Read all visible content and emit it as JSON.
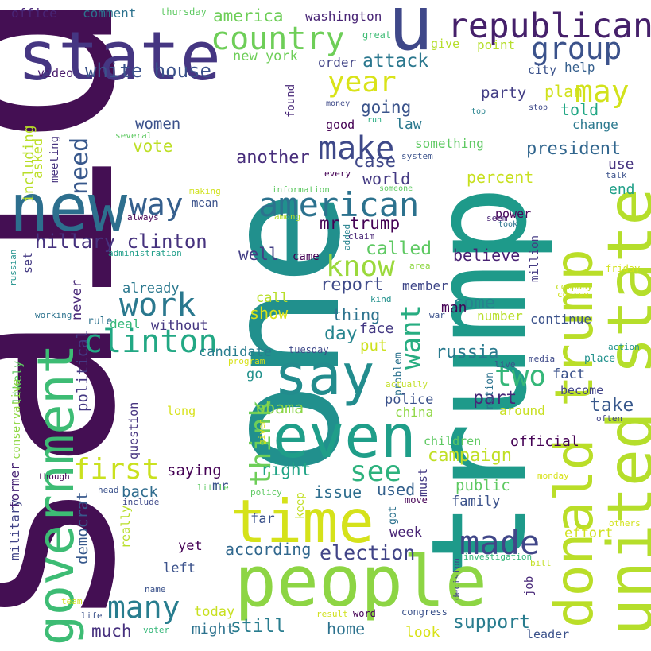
{
  "words": [
    {
      "text": "said",
      "color": "#440f53"
    },
    {
      "text": "one",
      "color": "#21908d"
    },
    {
      "text": "trump",
      "color": "#1e9a8a"
    },
    {
      "text": "state",
      "color": "#453682"
    },
    {
      "text": "u",
      "color": "#3f4889"
    },
    {
      "text": "republican",
      "color": "#45206a"
    },
    {
      "text": "new",
      "color": "#2d6f8e"
    },
    {
      "text": "people",
      "color": "#8dd544"
    },
    {
      "text": "government",
      "color": "#3dbc74"
    },
    {
      "text": "time",
      "color": "#d5e21a"
    },
    {
      "text": "donald trump",
      "color": "#bade28"
    },
    {
      "text": "united state",
      "color": "#b5de2b"
    },
    {
      "text": "even",
      "color": "#1f9e89"
    },
    {
      "text": "say",
      "color": "#228c8d"
    },
    {
      "text": "country",
      "color": "#6ece58"
    },
    {
      "text": "group",
      "color": "#3b528b"
    },
    {
      "text": "may",
      "color": "#d2e21b"
    },
    {
      "text": "year",
      "color": "#d9e319"
    },
    {
      "text": "make",
      "color": "#3e4989"
    },
    {
      "text": "american",
      "color": "#2c728e"
    },
    {
      "text": "know",
      "color": "#9bd93c"
    },
    {
      "text": "way",
      "color": "#355f8d"
    },
    {
      "text": "need",
      "color": "#38588c"
    },
    {
      "text": "work",
      "color": "#2a788e"
    },
    {
      "text": "clinton",
      "color": "#22a884"
    },
    {
      "text": "first",
      "color": "#cae11f"
    },
    {
      "text": "hillary clinton",
      "color": "#46327e"
    },
    {
      "text": "think",
      "color": "#6ece58"
    },
    {
      "text": "see",
      "color": "#2db27d"
    },
    {
      "text": "two",
      "color": "#35b779"
    },
    {
      "text": "made",
      "color": "#404688"
    },
    {
      "text": "many",
      "color": "#287d8e"
    },
    {
      "text": "election",
      "color": "#414487"
    },
    {
      "text": "want",
      "color": "#27ad81"
    },
    {
      "text": "america",
      "color": "#6ece58"
    },
    {
      "text": "washington",
      "color": "#482475"
    },
    {
      "text": "white house",
      "color": "#3b528b"
    },
    {
      "text": "new york",
      "color": "#6ece58"
    },
    {
      "text": "attack",
      "color": "#2a778e"
    },
    {
      "text": "going",
      "color": "#3a538b"
    },
    {
      "text": "party",
      "color": "#433e85"
    },
    {
      "text": "plan",
      "color": "#d0e11c"
    },
    {
      "text": "told",
      "color": "#22a785"
    },
    {
      "text": "president",
      "color": "#31668e"
    },
    {
      "text": "women",
      "color": "#3b518b"
    },
    {
      "text": "vote",
      "color": "#bddf26"
    },
    {
      "text": "another",
      "color": "#472d7b"
    },
    {
      "text": "case",
      "color": "#3f4889"
    },
    {
      "text": "world",
      "color": "#443a83"
    },
    {
      "text": "mr trump",
      "color": "#440154"
    },
    {
      "text": "called",
      "color": "#5ec962"
    },
    {
      "text": "well",
      "color": "#433e85"
    },
    {
      "text": "report",
      "color": "#3e4a89"
    },
    {
      "text": "believe",
      "color": "#482173"
    },
    {
      "text": "come",
      "color": "#26828e"
    },
    {
      "text": "russia",
      "color": "#297a8e"
    },
    {
      "text": "day",
      "color": "#25848e"
    },
    {
      "text": "political",
      "color": "#443983"
    },
    {
      "text": "democrat",
      "color": "#38598c"
    },
    {
      "text": "campaign",
      "color": "#c0df25"
    },
    {
      "text": "obama",
      "color": "#8bd646"
    },
    {
      "text": "right",
      "color": "#20a486"
    },
    {
      "text": "part",
      "color": "#482878"
    },
    {
      "text": "take",
      "color": "#38588c"
    },
    {
      "text": "support",
      "color": "#287c8e"
    },
    {
      "text": "still",
      "color": "#287c8e"
    },
    {
      "text": "much",
      "color": "#46307e"
    },
    {
      "text": "according",
      "color": "#31688e"
    },
    {
      "text": "issue",
      "color": "#2e6e8e"
    },
    {
      "text": "used",
      "color": "#34618d"
    },
    {
      "text": "back",
      "color": "#2f6c8e"
    },
    {
      "text": "saying",
      "color": "#440154"
    },
    {
      "text": "public",
      "color": "#5ec962"
    },
    {
      "text": "family",
      "color": "#3b528b"
    },
    {
      "text": "office",
      "color": "#482576"
    },
    {
      "text": "comment",
      "color": "#2c728e"
    },
    {
      "text": "thursday",
      "color": "#5ec962"
    },
    {
      "text": "great",
      "color": "#3dbc74"
    },
    {
      "text": "give",
      "color": "#b5de2b"
    },
    {
      "text": "point",
      "color": "#b5de2b"
    },
    {
      "text": "video",
      "color": "#481a6c"
    },
    {
      "text": "order",
      "color": "#414487"
    },
    {
      "text": "city",
      "color": "#3b528b"
    },
    {
      "text": "help",
      "color": "#355f8d"
    },
    {
      "text": "including",
      "color": "#b8de29"
    },
    {
      "text": "asked",
      "color": "#bddf26"
    },
    {
      "text": "meeting",
      "color": "#46337f"
    },
    {
      "text": "found",
      "color": "#482878"
    },
    {
      "text": "money",
      "color": "#3e4a89"
    },
    {
      "text": "run",
      "color": "#27ad81"
    },
    {
      "text": "top",
      "color": "#26828e"
    },
    {
      "text": "stop",
      "color": "#3e4989"
    },
    {
      "text": "law",
      "color": "#2a788e"
    },
    {
      "text": "good",
      "color": "#440154"
    },
    {
      "text": "change",
      "color": "#2a788e"
    },
    {
      "text": "something",
      "color": "#5ec962"
    },
    {
      "text": "system",
      "color": "#3b528b"
    },
    {
      "text": "several",
      "color": "#5ec962"
    },
    {
      "text": "use",
      "color": "#46337f"
    },
    {
      "text": "end",
      "color": "#1f9f88"
    },
    {
      "text": "percent",
      "color": "#c8e020"
    },
    {
      "text": "every",
      "color": "#440154"
    },
    {
      "text": "someone",
      "color": "#5ec962"
    },
    {
      "text": "talk",
      "color": "#3b528b"
    },
    {
      "text": "making",
      "color": "#d0e11c"
    },
    {
      "text": "information",
      "color": "#5ec962"
    },
    {
      "text": "mean",
      "color": "#3b528b"
    },
    {
      "text": "always",
      "color": "#440154"
    },
    {
      "text": "among",
      "color": "#b5de2b"
    },
    {
      "text": "seem",
      "color": "#482475"
    },
    {
      "text": "took",
      "color": "#2c728e"
    },
    {
      "text": "power",
      "color": "#46075a"
    },
    {
      "text": "million",
      "color": "#443a83"
    },
    {
      "text": "administration",
      "color": "#1f9e89"
    },
    {
      "text": "added",
      "color": "#26828e"
    },
    {
      "text": "claim",
      "color": "#482475"
    },
    {
      "text": "set",
      "color": "#443a83"
    },
    {
      "text": "came",
      "color": "#440154"
    },
    {
      "text": "area",
      "color": "#8fd744"
    },
    {
      "text": "friday",
      "color": "#d2e21b"
    },
    {
      "text": "russian",
      "color": "#21918c"
    },
    {
      "text": "already",
      "color": "#2a788e"
    },
    {
      "text": "member",
      "color": "#3f4788"
    },
    {
      "text": "call",
      "color": "#b8de29"
    },
    {
      "text": "kind",
      "color": "#21918c"
    },
    {
      "text": "company",
      "color": "#c2df23"
    },
    {
      "text": "course",
      "color": "#d0e11c"
    },
    {
      "text": "show",
      "color": "#d8e219"
    },
    {
      "text": "never",
      "color": "#482878"
    },
    {
      "text": "thing",
      "color": "#2c728e"
    },
    {
      "text": "man",
      "color": "#440154"
    },
    {
      "text": "war",
      "color": "#3b528b"
    },
    {
      "text": "number",
      "color": "#b8de29"
    },
    {
      "text": "working",
      "color": "#2c728e"
    },
    {
      "text": "rule",
      "color": "#2c728e"
    },
    {
      "text": "deal",
      "color": "#35b779"
    },
    {
      "text": "without",
      "color": "#453781"
    },
    {
      "text": "likely",
      "color": "#5ec962"
    },
    {
      "text": "continue",
      "color": "#3b528b"
    },
    {
      "text": "put",
      "color": "#cde11d"
    },
    {
      "text": "face",
      "color": "#443983"
    },
    {
      "text": "action",
      "color": "#21918c"
    },
    {
      "text": "candidate",
      "color": "#287c8e"
    },
    {
      "text": "tuesday",
      "color": "#3e4989"
    },
    {
      "text": "problem",
      "color": "#2c728e"
    },
    {
      "text": "media",
      "color": "#3e4989"
    },
    {
      "text": "place",
      "color": "#21918c"
    },
    {
      "text": "live",
      "color": "#3b528b"
    },
    {
      "text": "conservative",
      "color": "#8fd744"
    },
    {
      "text": "program",
      "color": "#d8e219"
    },
    {
      "text": "go",
      "color": "#21918c"
    },
    {
      "text": "fact",
      "color": "#3b528b"
    },
    {
      "text": "nation",
      "color": "#2c728e"
    },
    {
      "text": "become",
      "color": "#414487"
    },
    {
      "text": "police",
      "color": "#3b528b"
    },
    {
      "text": "actually",
      "color": "#c2df23"
    },
    {
      "text": "around",
      "color": "#c8e020"
    },
    {
      "text": "often",
      "color": "#414487"
    },
    {
      "text": "long",
      "color": "#d8e219"
    },
    {
      "text": "china",
      "color": "#8fd744"
    },
    {
      "text": "question",
      "color": "#46337f"
    },
    {
      "text": "given",
      "color": "#d5e21a"
    },
    {
      "text": "children",
      "color": "#5ec962"
    },
    {
      "text": "official",
      "color": "#440154"
    },
    {
      "text": "though",
      "color": "#440154"
    },
    {
      "text": "must",
      "color": "#443a83"
    },
    {
      "text": "monday",
      "color": "#d8e219"
    },
    {
      "text": "mr",
      "color": "#3b528b"
    },
    {
      "text": "head",
      "color": "#3b528b"
    },
    {
      "text": "little",
      "color": "#5ec962"
    },
    {
      "text": "include",
      "color": "#3e4989"
    },
    {
      "text": "policy",
      "color": "#5ec962"
    },
    {
      "text": "move",
      "color": "#440154"
    },
    {
      "text": "military",
      "color": "#414487"
    },
    {
      "text": "former",
      "color": "#482475"
    },
    {
      "text": "really",
      "color": "#b8de29"
    },
    {
      "text": "far",
      "color": "#3b528b"
    },
    {
      "text": "keep",
      "color": "#c2df23"
    },
    {
      "text": "got",
      "color": "#2c728e"
    },
    {
      "text": "week",
      "color": "#482475"
    },
    {
      "text": "effort",
      "color": "#d0e11c"
    },
    {
      "text": "others",
      "color": "#d2e21b"
    },
    {
      "text": "yet",
      "color": "#440154"
    },
    {
      "text": "investigation",
      "color": "#35b779"
    },
    {
      "text": "bill",
      "color": "#c2df23"
    },
    {
      "text": "left",
      "color": "#3b528b"
    },
    {
      "text": "job",
      "color": "#482878"
    },
    {
      "text": "decision",
      "color": "#414487"
    },
    {
      "text": "name",
      "color": "#3b528b"
    },
    {
      "text": "today",
      "color": "#c8e020"
    },
    {
      "text": "team",
      "color": "#d0e11c"
    },
    {
      "text": "life",
      "color": "#3b528b"
    },
    {
      "text": "might",
      "color": "#2c728e"
    },
    {
      "text": "result",
      "color": "#d0e11c"
    },
    {
      "text": "word",
      "color": "#440154"
    },
    {
      "text": "congress",
      "color": "#3b528b"
    },
    {
      "text": "look",
      "color": "#d8e219"
    },
    {
      "text": "home",
      "color": "#2c728e"
    },
    {
      "text": "leader",
      "color": "#3b528b"
    },
    {
      "text": "voter",
      "color": "#35b779"
    }
  ]
}
